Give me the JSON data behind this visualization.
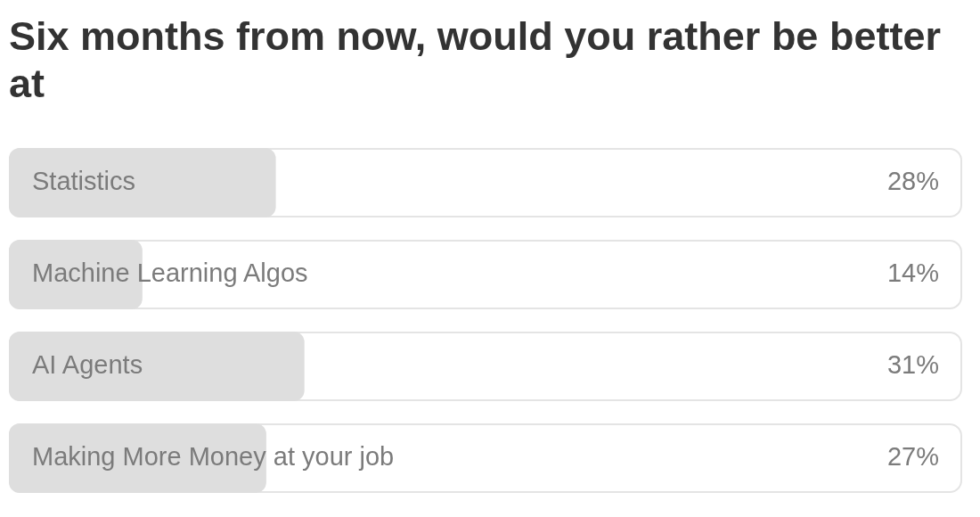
{
  "chart_data": {
    "type": "bar",
    "orientation": "horizontal",
    "title": "Six months from now, would you rather be better at",
    "categories": [
      "Statistics",
      "Machine Learning Algos",
      "AI Agents",
      "Making More Money at your job"
    ],
    "values": [
      28,
      14,
      31,
      27
    ],
    "value_labels": [
      "28%",
      "14%",
      "31%",
      "27%"
    ],
    "color": "#dedede",
    "xlim": [
      0,
      100
    ],
    "tick_labels": "y",
    "grid": false,
    "legend": false
  }
}
